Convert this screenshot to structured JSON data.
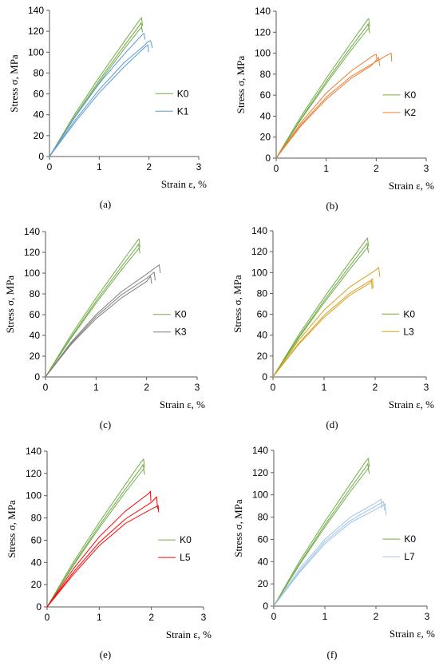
{
  "figure": {
    "title": ""
  },
  "chart_data": [
    {
      "type": "line",
      "caption": "(a)",
      "xlabel": "Strain ε, %",
      "ylabel": "Stress σ, MPa",
      "xlim": [
        0,
        3
      ],
      "ylim": [
        0,
        140
      ],
      "xticks": [
        "0",
        "1",
        "2",
        "3"
      ],
      "yticks": [
        "0",
        "20",
        "40",
        "60",
        "80",
        "100",
        "120",
        "140"
      ],
      "grid": false,
      "legend_position": "right",
      "legend": [
        "K0",
        "K1"
      ],
      "series": [
        {
          "name": "K0",
          "color": "#70ad47",
          "curves": [
            {
              "x": [
                0,
                0.5,
                1.0,
                1.5,
                1.8,
                1.85,
                1.87
              ],
              "y": [
                0,
                40,
                76,
                110,
                130,
                133,
                125
              ]
            },
            {
              "x": [
                0,
                0.5,
                1.0,
                1.5,
                1.8,
                1.84,
                1.86
              ],
              "y": [
                0,
                38,
                73,
                106,
                125,
                128,
                122
              ]
            },
            {
              "x": [
                0,
                0.5,
                1.0,
                1.5,
                1.8,
                1.85,
                1.87
              ],
              "y": [
                0,
                37,
                71,
                103,
                121,
                124,
                119
              ]
            }
          ]
        },
        {
          "name": "K1",
          "color": "#5b9bd5",
          "curves": [
            {
              "x": [
                0,
                0.5,
                1.0,
                1.5,
                1.85,
                1.9,
                1.92
              ],
              "y": [
                0,
                37,
                70,
                98,
                116,
                118,
                112
              ]
            },
            {
              "x": [
                0,
                0.5,
                1.0,
                1.5,
                1.9,
                1.98,
                2.03,
                2.07
              ],
              "y": [
                0,
                34,
                64,
                90,
                106,
                110,
                111,
                104
              ]
            },
            {
              "x": [
                0,
                0.5,
                1.0,
                1.5,
                1.9,
                1.98,
                1.99
              ],
              "y": [
                0,
                32,
                61,
                86,
                104,
                107,
                100
              ]
            }
          ]
        }
      ]
    },
    {
      "type": "line",
      "caption": "(b)",
      "xlabel": "Strain ε, %",
      "ylabel": "Stress σ, MPa",
      "xlim": [
        0,
        3
      ],
      "ylim": [
        0,
        140
      ],
      "xticks": [
        "0",
        "1",
        "2",
        "3"
      ],
      "yticks": [
        "0",
        "20",
        "40",
        "60",
        "80",
        "100",
        "120",
        "140"
      ],
      "grid": false,
      "legend_position": "right",
      "legend": [
        "K0",
        "K2"
      ],
      "series": [
        {
          "name": "K0",
          "color": "#70ad47",
          "curves": [
            {
              "x": [
                0,
                0.5,
                1.0,
                1.5,
                1.8,
                1.85,
                1.87
              ],
              "y": [
                0,
                40,
                76,
                110,
                130,
                133,
                125
              ]
            },
            {
              "x": [
                0,
                0.5,
                1.0,
                1.5,
                1.8,
                1.84,
                1.86
              ],
              "y": [
                0,
                38,
                73,
                106,
                125,
                128,
                122
              ]
            },
            {
              "x": [
                0,
                0.5,
                1.0,
                1.5,
                1.8,
                1.85,
                1.87
              ],
              "y": [
                0,
                37,
                71,
                103,
                121,
                124,
                119
              ]
            }
          ]
        },
        {
          "name": "K2",
          "color": "#ed7d31",
          "curves": [
            {
              "x": [
                0,
                0.5,
                1.0,
                1.5,
                1.95,
                2.0,
                2.02
              ],
              "y": [
                0,
                34,
                62,
                83,
                98,
                99,
                92
              ]
            },
            {
              "x": [
                0,
                0.5,
                1.0,
                1.5,
                2.0,
                2.25,
                2.3,
                2.31
              ],
              "y": [
                0,
                32,
                58,
                78,
                92,
                99,
                100,
                92
              ]
            },
            {
              "x": [
                0,
                0.5,
                1.0,
                1.5,
                1.9,
                2.05,
                2.07
              ],
              "y": [
                0,
                31,
                56,
                76,
                88,
                96,
                88
              ]
            }
          ]
        }
      ]
    },
    {
      "type": "line",
      "caption": "(c)",
      "xlabel": "Strain ε, %",
      "ylabel": "Stress σ, MPa",
      "xlim": [
        0,
        3
      ],
      "ylim": [
        0,
        140
      ],
      "xticks": [
        "0",
        "1",
        "2",
        "3"
      ],
      "yticks": [
        "0",
        "20",
        "40",
        "60",
        "80",
        "100",
        "120",
        "140"
      ],
      "grid": false,
      "legend_position": "right",
      "legend": [
        "K0",
        "K3"
      ],
      "series": [
        {
          "name": "K0",
          "color": "#70ad47",
          "curves": [
            {
              "x": [
                0,
                0.5,
                1.0,
                1.5,
                1.8,
                1.85,
                1.87
              ],
              "y": [
                0,
                40,
                76,
                110,
                130,
                133,
                125
              ]
            },
            {
              "x": [
                0,
                0.5,
                1.0,
                1.5,
                1.8,
                1.84,
                1.86
              ],
              "y": [
                0,
                38,
                73,
                106,
                125,
                128,
                122
              ]
            },
            {
              "x": [
                0,
                0.5,
                1.0,
                1.5,
                1.8,
                1.85,
                1.87
              ],
              "y": [
                0,
                37,
                71,
                103,
                121,
                124,
                119
              ]
            }
          ]
        },
        {
          "name": "K3",
          "color": "#7f7f7f",
          "curves": [
            {
              "x": [
                0,
                0.5,
                1.0,
                1.5,
                2.0,
                2.25,
                2.27
              ],
              "y": [
                0,
                33,
                60,
                82,
                99,
                108,
                100
              ]
            },
            {
              "x": [
                0,
                0.5,
                1.0,
                1.5,
                2.0,
                2.15,
                2.17
              ],
              "y": [
                0,
                32,
                58,
                79,
                95,
                101,
                93
              ]
            },
            {
              "x": [
                0,
                0.5,
                1.0,
                1.5,
                2.0,
                2.08,
                2.1
              ],
              "y": [
                0,
                31,
                56,
                76,
                92,
                97,
                90
              ]
            }
          ]
        }
      ]
    },
    {
      "type": "line",
      "caption": "(d)",
      "xlabel": "Strain ε, %",
      "ylabel": "Stress σ, MPa",
      "xlim": [
        0,
        3
      ],
      "ylim": [
        0,
        140
      ],
      "xticks": [
        "0",
        "1",
        "2",
        "3"
      ],
      "yticks": [
        "0",
        "20",
        "40",
        "60",
        "80",
        "100",
        "120",
        "140"
      ],
      "grid": false,
      "legend_position": "right",
      "legend": [
        "K0",
        "L3"
      ],
      "series": [
        {
          "name": "K0",
          "color": "#70ad47",
          "curves": [
            {
              "x": [
                0,
                0.5,
                1.0,
                1.5,
                1.8,
                1.85,
                1.87
              ],
              "y": [
                0,
                40,
                76,
                110,
                130,
                133,
                125
              ]
            },
            {
              "x": [
                0,
                0.5,
                1.0,
                1.5,
                1.8,
                1.84,
                1.86
              ],
              "y": [
                0,
                38,
                73,
                106,
                125,
                128,
                122
              ]
            },
            {
              "x": [
                0,
                0.5,
                1.0,
                1.5,
                1.8,
                1.85,
                1.87
              ],
              "y": [
                0,
                37,
                71,
                103,
                121,
                124,
                119
              ]
            }
          ]
        },
        {
          "name": "L3",
          "color": "#d6a21e",
          "curves": [
            {
              "x": [
                0,
                0.5,
                1.0,
                1.5,
                2.0,
                2.07,
                2.09
              ],
              "y": [
                0,
                35,
                64,
                86,
                102,
                105,
                96
              ]
            },
            {
              "x": [
                0,
                0.5,
                1.0,
                1.5,
                1.9,
                1.95,
                1.96
              ],
              "y": [
                0,
                32,
                59,
                80,
                92,
                94,
                85
              ]
            },
            {
              "x": [
                0,
                0.5,
                1.0,
                1.5,
                1.9,
                1.93,
                1.94
              ],
              "y": [
                0,
                31,
                57,
                78,
                90,
                92,
                84
              ]
            }
          ]
        }
      ]
    },
    {
      "type": "line",
      "caption": "(e)",
      "xlabel": "Strain ε, %",
      "ylabel": "Stress σ, MPa",
      "xlim": [
        0,
        3
      ],
      "ylim": [
        0,
        140
      ],
      "xticks": [
        "0",
        "1",
        "2",
        "3"
      ],
      "yticks": [
        "0",
        "20",
        "40",
        "60",
        "80",
        "100",
        "120",
        "140"
      ],
      "grid": false,
      "legend_position": "right",
      "legend": [
        "K0",
        "L5"
      ],
      "series": [
        {
          "name": "K0",
          "color": "#70ad47",
          "curves": [
            {
              "x": [
                0,
                0.5,
                1.0,
                1.5,
                1.8,
                1.85,
                1.87
              ],
              "y": [
                0,
                40,
                76,
                110,
                130,
                133,
                125
              ]
            },
            {
              "x": [
                0,
                0.5,
                1.0,
                1.5,
                1.8,
                1.84,
                1.86
              ],
              "y": [
                0,
                38,
                73,
                106,
                125,
                128,
                122
              ]
            },
            {
              "x": [
                0,
                0.5,
                1.0,
                1.5,
                1.8,
                1.85,
                1.87
              ],
              "y": [
                0,
                37,
                71,
                103,
                121,
                124,
                119
              ]
            }
          ]
        },
        {
          "name": "L5",
          "color": "#ff0000",
          "curves": [
            {
              "x": [
                0,
                0.5,
                1.0,
                1.5,
                1.95,
                1.98,
                1.99
              ],
              "y": [
                0,
                34,
                63,
                86,
                102,
                104,
                95
              ]
            },
            {
              "x": [
                0,
                0.5,
                1.0,
                1.5,
                2.0,
                2.1,
                2.12
              ],
              "y": [
                0,
                31,
                58,
                79,
                94,
                99,
                88
              ]
            },
            {
              "x": [
                0,
                0.5,
                1.0,
                1.5,
                2.0,
                2.13,
                2.14
              ],
              "y": [
                0,
                29,
                55,
                75,
                88,
                91,
                85
              ]
            }
          ]
        }
      ]
    },
    {
      "type": "line",
      "caption": "(f)",
      "xlabel": "Strain ε, %",
      "ylabel": "Stress σ, MPa",
      "xlim": [
        0,
        3
      ],
      "ylim": [
        0,
        140
      ],
      "xticks": [
        "0",
        "1",
        "2",
        "3"
      ],
      "yticks": [
        "0",
        "20",
        "40",
        "60",
        "80",
        "100",
        "120",
        "140"
      ],
      "grid": false,
      "legend_position": "right",
      "legend": [
        "K0",
        "L7"
      ],
      "series": [
        {
          "name": "K0",
          "color": "#70ad47",
          "curves": [
            {
              "x": [
                0,
                0.5,
                1.0,
                1.5,
                1.8,
                1.85,
                1.87
              ],
              "y": [
                0,
                40,
                76,
                110,
                130,
                133,
                125
              ]
            },
            {
              "x": [
                0,
                0.5,
                1.0,
                1.5,
                1.8,
                1.84,
                1.86
              ],
              "y": [
                0,
                38,
                73,
                106,
                125,
                128,
                122
              ]
            },
            {
              "x": [
                0,
                0.5,
                1.0,
                1.5,
                1.8,
                1.85,
                1.87
              ],
              "y": [
                0,
                37,
                71,
                103,
                121,
                124,
                119
              ]
            }
          ]
        },
        {
          "name": "L7",
          "color": "#9dc3e6",
          "curves": [
            {
              "x": [
                0,
                0.5,
                1.0,
                1.5,
                2.0,
                2.1,
                2.12
              ],
              "y": [
                0,
                33,
                60,
                80,
                93,
                96,
                88
              ]
            },
            {
              "x": [
                0,
                0.5,
                1.0,
                1.5,
                2.0,
                2.15,
                2.17
              ],
              "y": [
                0,
                31,
                58,
                77,
                90,
                94,
                86
              ]
            },
            {
              "x": [
                0,
                0.5,
                1.0,
                1.5,
                2.0,
                2.18,
                2.2
              ],
              "y": [
                0,
                30,
                56,
                75,
                87,
                92,
                82
              ]
            }
          ]
        }
      ]
    }
  ]
}
